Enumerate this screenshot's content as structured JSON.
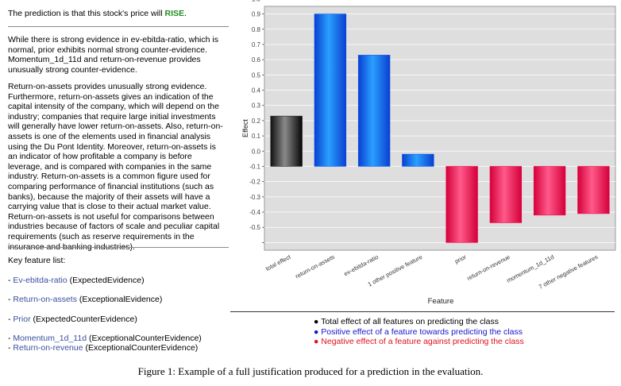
{
  "prediction": {
    "text": "The prediction is that this stock's price will ",
    "label": "RISE",
    "period": "."
  },
  "paragraph1": "While there is strong evidence in ev-ebitda-ratio, which is normal, prior exhibits normal strong counter-evidence. Momentum_1d_11d and return-on-revenue provides unusually strong counter-evidence.",
  "paragraph2": "Return-on-assets provides unusually strong evidence. Furthermore, return-on-assets gives an indication of the capital intensity of the company, which will depend on the industry; companies that require large initial investments will generally have lower return-on-assets. Also, return-on-assets is one of the elements used in financial analysis using the Du Pont Identity. Moreover, return-on-assets is an indicator of how profitable a company is before leverage, and is compared with companies in the same industry. Return-on-assets is a common figure used for comparing performance of financial institutions (such as banks), because the majority of their assets will have a carrying value that is close to their actual market value. Return-on-assets is not useful for comparisons between industries because of factors of scale and peculiar capital requirements (such as reserve requirements in the insurance and banking industries).",
  "key_features": {
    "title": "Key feature list:",
    "items": [
      {
        "prefix": "- ",
        "name": "Ev-ebitda-ratio",
        "tag": " (ExpectedEvidence)"
      },
      {
        "prefix": "- ",
        "name": "Return-on-assets",
        "tag": " (ExceptionalEvidence)"
      },
      {
        "prefix": "- ",
        "name": "Prior",
        "tag": " (ExpectedCounterEvidence)"
      },
      {
        "prefix": "- ",
        "name": "Momentum_1d_11d",
        "tag": " (ExceptionalCounterEvidence)"
      },
      {
        "prefix": "- ",
        "name": "Return-on-revenue",
        "tag": " (ExceptionalCounterEvidence)"
      }
    ]
  },
  "chart_data": {
    "type": "bar",
    "xlabel": "Feature",
    "ylabel": "Effect",
    "ylim": [
      -0.55,
      1.05
    ],
    "yticks": [
      "1.0",
      "0.9",
      "0.8",
      "0.7",
      "0.6",
      "0.5",
      "0.4",
      "0.3",
      "0.2",
      "0.1",
      "0.0",
      "-0.1",
      "-0.2",
      "-0.3",
      "-0.4",
      "-0.5"
    ],
    "categories": [
      "total effect",
      "return-on-assets",
      "ev-ebitda-ratio",
      "1 other positive feature",
      "prior",
      "return-on-revenue",
      "momentum_1d_11d",
      "7 other negative features"
    ],
    "values": [
      0.33,
      1.0,
      0.73,
      0.08,
      -0.5,
      -0.37,
      -0.32,
      -0.31
    ],
    "kinds": [
      "total",
      "positive",
      "positive",
      "positive",
      "negative",
      "negative",
      "negative",
      "negative"
    ],
    "grid": true,
    "colors": {
      "total": "#222222",
      "positive": "#0a56ee",
      "negative": "#ee0b50"
    }
  },
  "legend": {
    "items": [
      {
        "bullet": "●",
        "text": "Total effect of all features on predicting the class"
      },
      {
        "bullet": "●",
        "text": "Positive effect of a feature towards predicting the class"
      },
      {
        "bullet": "●",
        "text": "Negative effect of a feature against predicting the class"
      }
    ]
  },
  "caption": "Figure 1: Example of a full justification produced for a prediction in the evaluation."
}
